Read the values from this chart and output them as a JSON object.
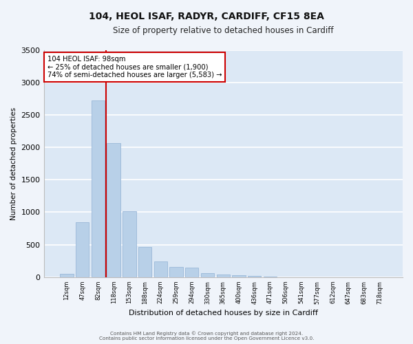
{
  "title": "104, HEOL ISAF, RADYR, CARDIFF, CF15 8EA",
  "subtitle": "Size of property relative to detached houses in Cardiff",
  "xlabel": "Distribution of detached houses by size in Cardiff",
  "ylabel": "Number of detached properties",
  "bar_color": "#b8d0e8",
  "bar_edge_color": "#9ab8d8",
  "background_color": "#f0f4fa",
  "axes_bg_color": "#dce8f5",
  "grid_color": "#ffffff",
  "categories": [
    "12sqm",
    "47sqm",
    "82sqm",
    "118sqm",
    "153sqm",
    "188sqm",
    "224sqm",
    "259sqm",
    "294sqm",
    "330sqm",
    "365sqm",
    "400sqm",
    "436sqm",
    "471sqm",
    "506sqm",
    "541sqm",
    "577sqm",
    "612sqm",
    "647sqm",
    "683sqm",
    "718sqm"
  ],
  "values": [
    55,
    850,
    2720,
    2060,
    1010,
    460,
    240,
    155,
    150,
    60,
    45,
    30,
    18,
    10,
    0,
    0,
    0,
    0,
    0,
    0,
    0
  ],
  "vline_color": "#cc0000",
  "vline_xindex": 2.5,
  "annotation_text_line1": "104 HEOL ISAF: 98sqm",
  "annotation_text_line2": "← 25% of detached houses are smaller (1,900)",
  "annotation_text_line3": "74% of semi-detached houses are larger (5,583) →",
  "annotation_box_edge_color": "#cc0000",
  "ylim": [
    0,
    3500
  ],
  "yticks": [
    0,
    500,
    1000,
    1500,
    2000,
    2500,
    3000,
    3500
  ],
  "footer1": "Contains HM Land Registry data © Crown copyright and database right 2024.",
  "footer2": "Contains public sector information licensed under the Open Government Licence v3.0."
}
